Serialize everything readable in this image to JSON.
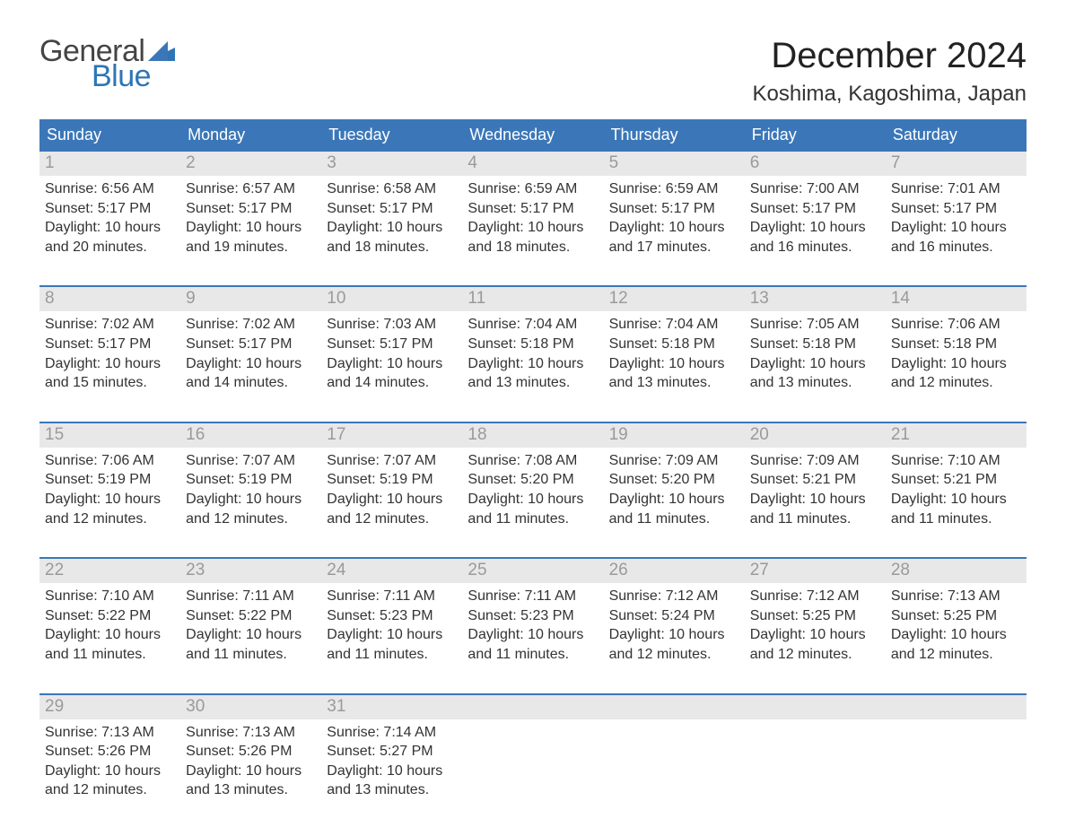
{
  "logo": {
    "top": "General",
    "bottom": "Blue",
    "flag_color": "#2f75b5"
  },
  "title": "December 2024",
  "location": "Koshima, Kagoshima, Japan",
  "colors": {
    "header_bg": "#3b77b8",
    "header_text": "#ffffff",
    "divider": "#3b77b8",
    "num_band_bg": "#e8e8e8",
    "num_text": "#9a9a9a",
    "body_text": "#333333",
    "bg": "#ffffff",
    "logo_gray": "#444444",
    "logo_blue": "#2f75b5"
  },
  "day_headers": [
    "Sunday",
    "Monday",
    "Tuesday",
    "Wednesday",
    "Thursday",
    "Friday",
    "Saturday"
  ],
  "weeks": [
    [
      {
        "n": "1",
        "sunrise": "6:56 AM",
        "sunset": "5:17 PM",
        "dl1": "Daylight: 10 hours",
        "dl2": "and 20 minutes."
      },
      {
        "n": "2",
        "sunrise": "6:57 AM",
        "sunset": "5:17 PM",
        "dl1": "Daylight: 10 hours",
        "dl2": "and 19 minutes."
      },
      {
        "n": "3",
        "sunrise": "6:58 AM",
        "sunset": "5:17 PM",
        "dl1": "Daylight: 10 hours",
        "dl2": "and 18 minutes."
      },
      {
        "n": "4",
        "sunrise": "6:59 AM",
        "sunset": "5:17 PM",
        "dl1": "Daylight: 10 hours",
        "dl2": "and 18 minutes."
      },
      {
        "n": "5",
        "sunrise": "6:59 AM",
        "sunset": "5:17 PM",
        "dl1": "Daylight: 10 hours",
        "dl2": "and 17 minutes."
      },
      {
        "n": "6",
        "sunrise": "7:00 AM",
        "sunset": "5:17 PM",
        "dl1": "Daylight: 10 hours",
        "dl2": "and 16 minutes."
      },
      {
        "n": "7",
        "sunrise": "7:01 AM",
        "sunset": "5:17 PM",
        "dl1": "Daylight: 10 hours",
        "dl2": "and 16 minutes."
      }
    ],
    [
      {
        "n": "8",
        "sunrise": "7:02 AM",
        "sunset": "5:17 PM",
        "dl1": "Daylight: 10 hours",
        "dl2": "and 15 minutes."
      },
      {
        "n": "9",
        "sunrise": "7:02 AM",
        "sunset": "5:17 PM",
        "dl1": "Daylight: 10 hours",
        "dl2": "and 14 minutes."
      },
      {
        "n": "10",
        "sunrise": "7:03 AM",
        "sunset": "5:17 PM",
        "dl1": "Daylight: 10 hours",
        "dl2": "and 14 minutes."
      },
      {
        "n": "11",
        "sunrise": "7:04 AM",
        "sunset": "5:18 PM",
        "dl1": "Daylight: 10 hours",
        "dl2": "and 13 minutes."
      },
      {
        "n": "12",
        "sunrise": "7:04 AM",
        "sunset": "5:18 PM",
        "dl1": "Daylight: 10 hours",
        "dl2": "and 13 minutes."
      },
      {
        "n": "13",
        "sunrise": "7:05 AM",
        "sunset": "5:18 PM",
        "dl1": "Daylight: 10 hours",
        "dl2": "and 13 minutes."
      },
      {
        "n": "14",
        "sunrise": "7:06 AM",
        "sunset": "5:18 PM",
        "dl1": "Daylight: 10 hours",
        "dl2": "and 12 minutes."
      }
    ],
    [
      {
        "n": "15",
        "sunrise": "7:06 AM",
        "sunset": "5:19 PM",
        "dl1": "Daylight: 10 hours",
        "dl2": "and 12 minutes."
      },
      {
        "n": "16",
        "sunrise": "7:07 AM",
        "sunset": "5:19 PM",
        "dl1": "Daylight: 10 hours",
        "dl2": "and 12 minutes."
      },
      {
        "n": "17",
        "sunrise": "7:07 AM",
        "sunset": "5:19 PM",
        "dl1": "Daylight: 10 hours",
        "dl2": "and 12 minutes."
      },
      {
        "n": "18",
        "sunrise": "7:08 AM",
        "sunset": "5:20 PM",
        "dl1": "Daylight: 10 hours",
        "dl2": "and 11 minutes."
      },
      {
        "n": "19",
        "sunrise": "7:09 AM",
        "sunset": "5:20 PM",
        "dl1": "Daylight: 10 hours",
        "dl2": "and 11 minutes."
      },
      {
        "n": "20",
        "sunrise": "7:09 AM",
        "sunset": "5:21 PM",
        "dl1": "Daylight: 10 hours",
        "dl2": "and 11 minutes."
      },
      {
        "n": "21",
        "sunrise": "7:10 AM",
        "sunset": "5:21 PM",
        "dl1": "Daylight: 10 hours",
        "dl2": "and 11 minutes."
      }
    ],
    [
      {
        "n": "22",
        "sunrise": "7:10 AM",
        "sunset": "5:22 PM",
        "dl1": "Daylight: 10 hours",
        "dl2": "and 11 minutes."
      },
      {
        "n": "23",
        "sunrise": "7:11 AM",
        "sunset": "5:22 PM",
        "dl1": "Daylight: 10 hours",
        "dl2": "and 11 minutes."
      },
      {
        "n": "24",
        "sunrise": "7:11 AM",
        "sunset": "5:23 PM",
        "dl1": "Daylight: 10 hours",
        "dl2": "and 11 minutes."
      },
      {
        "n": "25",
        "sunrise": "7:11 AM",
        "sunset": "5:23 PM",
        "dl1": "Daylight: 10 hours",
        "dl2": "and 11 minutes."
      },
      {
        "n": "26",
        "sunrise": "7:12 AM",
        "sunset": "5:24 PM",
        "dl1": "Daylight: 10 hours",
        "dl2": "and 12 minutes."
      },
      {
        "n": "27",
        "sunrise": "7:12 AM",
        "sunset": "5:25 PM",
        "dl1": "Daylight: 10 hours",
        "dl2": "and 12 minutes."
      },
      {
        "n": "28",
        "sunrise": "7:13 AM",
        "sunset": "5:25 PM",
        "dl1": "Daylight: 10 hours",
        "dl2": "and 12 minutes."
      }
    ],
    [
      {
        "n": "29",
        "sunrise": "7:13 AM",
        "sunset": "5:26 PM",
        "dl1": "Daylight: 10 hours",
        "dl2": "and 12 minutes."
      },
      {
        "n": "30",
        "sunrise": "7:13 AM",
        "sunset": "5:26 PM",
        "dl1": "Daylight: 10 hours",
        "dl2": "and 13 minutes."
      },
      {
        "n": "31",
        "sunrise": "7:14 AM",
        "sunset": "5:27 PM",
        "dl1": "Daylight: 10 hours",
        "dl2": "and 13 minutes."
      },
      null,
      null,
      null,
      null
    ]
  ],
  "labels": {
    "sunrise_prefix": "Sunrise: ",
    "sunset_prefix": "Sunset: "
  }
}
